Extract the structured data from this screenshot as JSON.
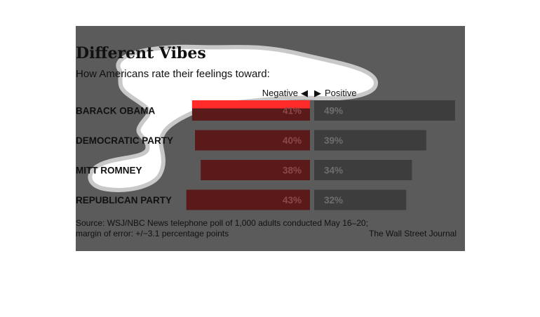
{
  "chart_data": {
    "type": "bar",
    "title": "Different Vibes",
    "subtitle": "How Americans rate their feelings toward:",
    "negative_label": "Negative",
    "positive_label": "Positive",
    "arrow_left": "◀",
    "arrow_right": "▶",
    "categories": [
      "BARACK OBAMA",
      "DEMOCRATIC PARTY",
      "MITT ROMNEY",
      "REPUBLICAN PARTY"
    ],
    "series": [
      {
        "name": "Negative",
        "values": [
          41,
          40,
          38,
          43
        ],
        "color": "#5a1a1a",
        "highlight_color": "#ff2a2a"
      },
      {
        "name": "Positive",
        "values": [
          49,
          39,
          34,
          32
        ],
        "color": "#3d3d3d"
      }
    ],
    "value_suffix": "%",
    "source_line1": "Source: WSJ/NBC News telephone poll of 1,000 adults conducted May 16–20;",
    "source_line2": "margin of error: +/−3.1 percentage points",
    "credit": "The Wall Street Journal",
    "colors": {
      "panel": "#5b5b5b",
      "page": "#ffffff"
    }
  }
}
